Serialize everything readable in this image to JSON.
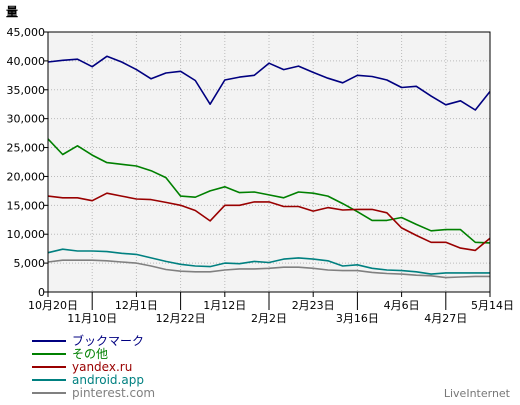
{
  "chart_data": {
    "type": "line",
    "ylabel": "量",
    "ylim": [
      0,
      45000
    ],
    "yticks": [
      0,
      5000,
      10000,
      15000,
      20000,
      25000,
      30000,
      35000,
      40000,
      45000
    ],
    "ytick_labels": [
      "0",
      "5,000",
      "10,000",
      "15,000",
      "20,000",
      "25,000",
      "30,000",
      "35,000",
      "40,000",
      "45,000"
    ],
    "grid": true,
    "x_tick_labels": [
      {
        "label": "10月20日",
        "index": 0,
        "row": 1
      },
      {
        "label": "11月10日",
        "index": 3,
        "row": 2
      },
      {
        "label": "12月1日",
        "index": 6,
        "row": 1
      },
      {
        "label": "12月22日",
        "index": 9,
        "row": 2
      },
      {
        "label": "1月12日",
        "index": 12,
        "row": 1
      },
      {
        "label": "2月2日",
        "index": 15,
        "row": 2
      },
      {
        "label": "2月23日",
        "index": 18,
        "row": 1
      },
      {
        "label": "3月16日",
        "index": 21,
        "row": 2
      },
      {
        "label": "4月6日",
        "index": 24,
        "row": 1
      },
      {
        "label": "4月27日",
        "index": 27,
        "row": 2
      },
      {
        "label": "5月14日",
        "index": 30,
        "row": 1
      }
    ],
    "x_count": 31,
    "series": [
      {
        "name": "ブックマーク",
        "color": "#000080",
        "values": [
          39800,
          40100,
          40300,
          39000,
          40800,
          39800,
          38500,
          36900,
          37900,
          38200,
          36600,
          32500,
          36700,
          37200,
          37500,
          39600,
          38500,
          39100,
          38000,
          37000,
          36200,
          37500,
          37300,
          36700,
          35400,
          35600,
          33900,
          32400,
          33100,
          31500,
          34700
        ]
      },
      {
        "name": "その他",
        "color": "#008000",
        "values": [
          26500,
          23800,
          25300,
          23700,
          22400,
          22100,
          21800,
          21000,
          19800,
          16600,
          16400,
          17500,
          18200,
          17200,
          17300,
          16800,
          16300,
          17300,
          17100,
          16600,
          15300,
          13900,
          12400,
          12400,
          12900,
          11700,
          10600,
          10800,
          10800,
          8600,
          8500
        ]
      },
      {
        "name": "yandex.ru",
        "color": "#990000",
        "values": [
          16600,
          16300,
          16300,
          15800,
          17100,
          16600,
          16100,
          16000,
          15500,
          15000,
          14100,
          12300,
          15000,
          15000,
          15600,
          15600,
          14800,
          14800,
          14000,
          14600,
          14200,
          14300,
          14300,
          13700,
          11100,
          9800,
          8600,
          8600,
          7600,
          7200,
          9300
        ]
      },
      {
        "name": "android.app",
        "color": "#008080",
        "values": [
          6800,
          7400,
          7100,
          7100,
          7000,
          6700,
          6500,
          5900,
          5300,
          4800,
          4500,
          4400,
          5000,
          4900,
          5300,
          5100,
          5700,
          5900,
          5700,
          5400,
          4500,
          4700,
          4100,
          3800,
          3700,
          3500,
          3100,
          3300,
          3300,
          3300,
          3300
        ]
      },
      {
        "name": "pinterest.com",
        "color": "#808080",
        "values": [
          5200,
          5500,
          5500,
          5500,
          5400,
          5200,
          5000,
          4500,
          3900,
          3600,
          3500,
          3500,
          3800,
          4000,
          4000,
          4100,
          4300,
          4300,
          4100,
          3800,
          3700,
          3700,
          3400,
          3200,
          3100,
          2900,
          2800,
          2500,
          2600,
          2700,
          2700
        ]
      }
    ],
    "legend_position": "bottom-left",
    "credit": "LiveInternet"
  }
}
